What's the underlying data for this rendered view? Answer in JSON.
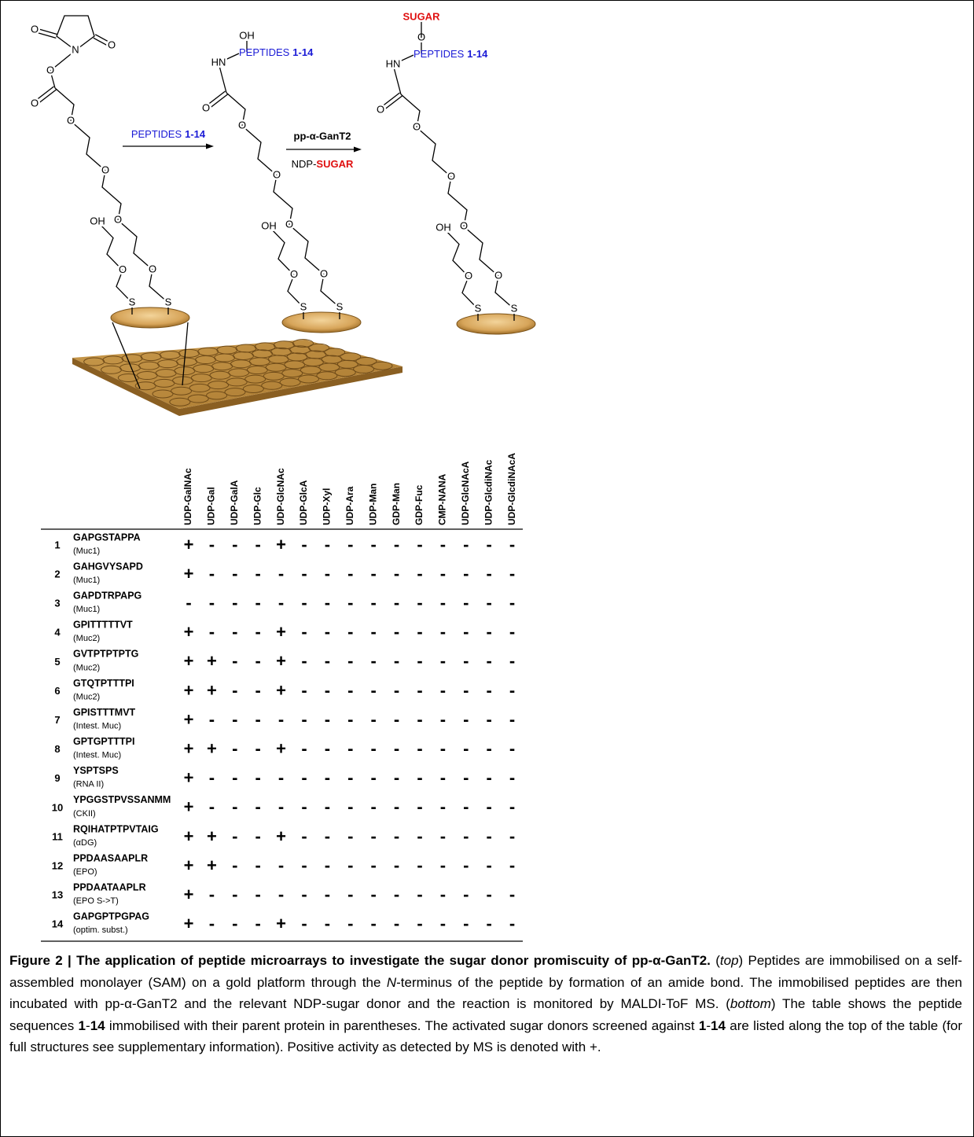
{
  "scheme": {
    "molecules": [
      {
        "head_atoms": [
          "O",
          "O",
          "N",
          "O",
          "O"
        ],
        "chain_atoms": [
          "O",
          "O",
          "O",
          "O",
          "S",
          "OH",
          "O",
          "S"
        ]
      },
      {
        "head_atoms": [
          "OH",
          "HN",
          "O"
        ],
        "peptide": {
          "text": "PEPTIDES",
          "number": "1-14"
        },
        "chain_atoms": [
          "O",
          "O",
          "O",
          "O",
          "S",
          "OH",
          "O",
          "S"
        ]
      },
      {
        "head_atoms": [
          "O",
          "HN",
          "O"
        ],
        "sugar": "SUGAR",
        "peptide": {
          "text": "PEPTIDES",
          "number": "1-14"
        },
        "chain_atoms": [
          "O",
          "O",
          "O",
          "O",
          "S",
          "OH",
          "O",
          "S"
        ]
      }
    ],
    "arrows": [
      {
        "above": {
          "text": "PEPTIDES",
          "number": "1-14"
        }
      },
      {
        "above": "pp-α-GanT2",
        "below": {
          "prefix": "NDP-",
          "sugar": "SUGAR"
        }
      }
    ]
  },
  "table": {
    "columns": [
      "UDP-GalNAc",
      "UDP-Gal",
      "UDP-GalA",
      "UDP-Glc",
      "UDP-GlcNAc",
      "UDP-GlcA",
      "UDP-Xyl",
      "UDP-Ara",
      "UDP-Man",
      "GDP-Man",
      "GDP-Fuc",
      "CMP-NANA",
      "UDP-GlcNAcA",
      "UDP-GlcdiNAc",
      "UDP-GlcdiNAcA"
    ],
    "rows": [
      {
        "number": "1",
        "sequence": "GAPGSTAPPA",
        "protein": "(Muc1)",
        "marks": [
          "+",
          "-",
          "-",
          "-",
          "+",
          "-",
          "-",
          "-",
          "-",
          "-",
          "-",
          "-",
          "-",
          "-",
          "-"
        ]
      },
      {
        "number": "2",
        "sequence": "GAHGVYSAPD",
        "protein": "(Muc1)",
        "marks": [
          "+",
          "-",
          "-",
          "-",
          "-",
          "-",
          "-",
          "-",
          "-",
          "-",
          "-",
          "-",
          "-",
          "-",
          "-"
        ]
      },
      {
        "number": "3",
        "sequence": "GAPDTRPAPG",
        "protein": "(Muc1)",
        "marks": [
          "-",
          "-",
          "-",
          "-",
          "-",
          "-",
          "-",
          "-",
          "-",
          "-",
          "-",
          "-",
          "-",
          "-",
          "-"
        ]
      },
      {
        "number": "4",
        "sequence": "GPITTTTTVT",
        "protein": "(Muc2)",
        "marks": [
          "+",
          "-",
          "-",
          "-",
          "+",
          "-",
          "-",
          "-",
          "-",
          "-",
          "-",
          "-",
          "-",
          "-",
          "-"
        ]
      },
      {
        "number": "5",
        "sequence": "GVTPTPTPTG",
        "protein": "(Muc2)",
        "marks": [
          "+",
          "+",
          "-",
          "-",
          "+",
          "-",
          "-",
          "-",
          "-",
          "-",
          "-",
          "-",
          "-",
          "-",
          "-"
        ]
      },
      {
        "number": "6",
        "sequence": "GTQTPTTTPI",
        "protein": "(Muc2)",
        "marks": [
          "+",
          "+",
          "-",
          "-",
          "+",
          "-",
          "-",
          "-",
          "-",
          "-",
          "-",
          "-",
          "-",
          "-",
          "-"
        ]
      },
      {
        "number": "7",
        "sequence": "GPISTTTMVT",
        "protein": "(Intest. Muc)",
        "marks": [
          "+",
          "-",
          "-",
          "-",
          "-",
          "-",
          "-",
          "-",
          "-",
          "-",
          "-",
          "-",
          "-",
          "-",
          "-"
        ]
      },
      {
        "number": "8",
        "sequence": "GPTGPTTTPI",
        "protein": "(Intest. Muc)",
        "marks": [
          "+",
          "+",
          "-",
          "-",
          "+",
          "-",
          "-",
          "-",
          "-",
          "-",
          "-",
          "-",
          "-",
          "-",
          "-"
        ]
      },
      {
        "number": "9",
        "sequence": "YSPTSPS",
        "protein": "(RNA II)",
        "marks": [
          "+",
          "-",
          "-",
          "-",
          "-",
          "-",
          "-",
          "-",
          "-",
          "-",
          "-",
          "-",
          "-",
          "-",
          "-"
        ]
      },
      {
        "number": "10",
        "sequence": "YPGGSTPVSSANMM",
        "protein": "(CKII)",
        "marks": [
          "+",
          "-",
          "-",
          "-",
          "-",
          "-",
          "-",
          "-",
          "-",
          "-",
          "-",
          "-",
          "-",
          "-",
          "-"
        ]
      },
      {
        "number": "11",
        "sequence": "RQIHATPTPVTAIG",
        "protein": "(αDG)",
        "marks": [
          "+",
          "+",
          "-",
          "-",
          "+",
          "-",
          "-",
          "-",
          "-",
          "-",
          "-",
          "-",
          "-",
          "-",
          "-"
        ]
      },
      {
        "number": "12",
        "sequence": "PPDAASAAPLR",
        "protein": "(EPO)",
        "marks": [
          "+",
          "+",
          "-",
          "-",
          "-",
          "-",
          "-",
          "-",
          "-",
          "-",
          "-",
          "-",
          "-",
          "-",
          "-"
        ]
      },
      {
        "number": "13",
        "sequence": "PPDAATAAPLR",
        "protein": "(EPO S->T)",
        "marks": [
          "+",
          "-",
          "-",
          "-",
          "-",
          "-",
          "-",
          "-",
          "-",
          "-",
          "-",
          "-",
          "-",
          "-",
          "-"
        ]
      },
      {
        "number": "14",
        "sequence": "GAPGPTPGPAG",
        "protein": "(optim. subst.)",
        "marks": [
          "+",
          "-",
          "-",
          "-",
          "+",
          "-",
          "-",
          "-",
          "-",
          "-",
          "-",
          "-",
          "-",
          "-",
          "-"
        ]
      }
    ]
  },
  "caption": {
    "segments": [
      {
        "text": "Figure 2 | The application of peptide microarrays to investigate the sugar donor promiscuity of pp-α-GanT2.",
        "style": "bold"
      },
      {
        "text": " (",
        "style": "normal"
      },
      {
        "text": "top",
        "style": "italic"
      },
      {
        "text": ") Peptides are immobilised on a self-assembled monolayer (SAM) on a gold platform through the ",
        "style": "normal"
      },
      {
        "text": "N",
        "style": "italic"
      },
      {
        "text": "-terminus of the peptide by formation of an amide bond. The immobilised peptides are then incubated with pp-α-GanT2 and the relevant NDP-sugar donor and the reaction is monitored by MALDI-ToF MS. (",
        "style": "normal"
      },
      {
        "text": "bottom",
        "style": "italic"
      },
      {
        "text": ") The table shows the peptide sequences ",
        "style": "normal"
      },
      {
        "text": "1",
        "style": "bold"
      },
      {
        "text": "-",
        "style": "normal"
      },
      {
        "text": "14",
        "style": "bold"
      },
      {
        "text": " immobilised with their parent protein in parentheses. The activated sugar donors screened against ",
        "style": "normal"
      },
      {
        "text": "1",
        "style": "bold"
      },
      {
        "text": "-",
        "style": "normal"
      },
      {
        "text": "14",
        "style": "bold"
      },
      {
        "text": " are listed along the top of the table (for full structures see supplementary information). Positive activity as detected by MS is denoted with +.",
        "style": "normal"
      }
    ]
  }
}
